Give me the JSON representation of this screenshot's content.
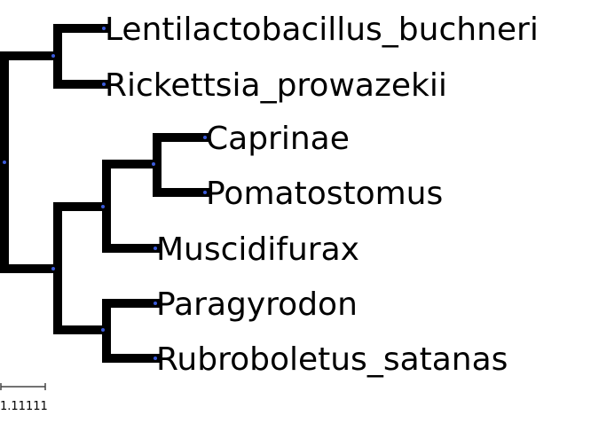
{
  "tree": {
    "leaves": [
      "Lentilactobacillus_buchneri",
      "Rickettsia_prowazekii",
      "Caprinae",
      "Pomatostomus",
      "Muscidifurax",
      "Paragyrodon",
      "Rubroboletus_satanas"
    ],
    "scale_label": "1.11111",
    "branch_color": "#000000",
    "node_color": "#3b5bdb"
  }
}
